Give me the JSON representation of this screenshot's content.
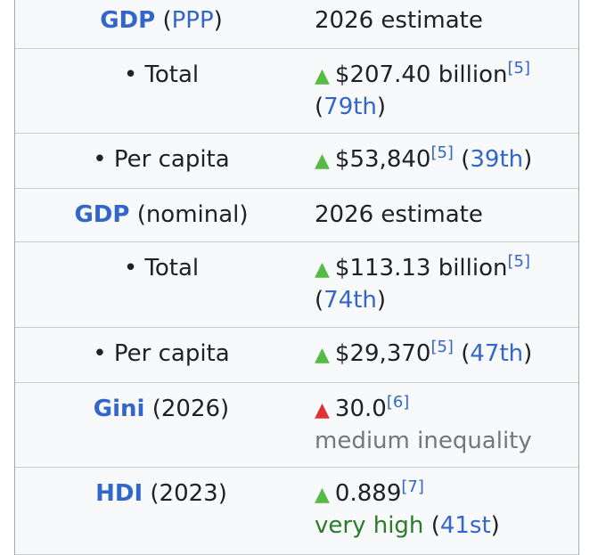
{
  "rows": [
    {
      "label_link": "GDP",
      "label_paren": "(PPP)",
      "value": "2026 estimate"
    },
    {
      "label": "• Total",
      "value": "$207.40 billion",
      "ref": "[5]",
      "rank": "79th",
      "trend": "up"
    },
    {
      "label": "• Per capita",
      "value": "$53,840",
      "ref": "[5]",
      "rank": "39th",
      "trend": "up"
    },
    {
      "label_link": "GDP",
      "label_rest": "(nominal)",
      "value": "2026 estimate"
    },
    {
      "label": "• Total",
      "value": "$113.13 billion",
      "ref": "[5]",
      "rank": "74th",
      "trend": "up"
    },
    {
      "label": "• Per capita",
      "value": "$29,370",
      "ref": "[5]",
      "rank": "47th",
      "trend": "up"
    },
    {
      "label_link": "Gini",
      "label_rest": "(2026)",
      "value": "30.0",
      "ref": "[6]",
      "note": "medium inequality",
      "trend": "up-red"
    },
    {
      "label_link": "HDI",
      "label_rest": "(2023)",
      "value": "0.889",
      "ref": "[7]",
      "note": "very high",
      "rank": "41st",
      "trend": "up"
    }
  ],
  "icons": {
    "up": "triangle-up-icon"
  },
  "colors": {
    "link": "#3366cc",
    "up": "#55bb44",
    "red": "#dd3333",
    "green_text": "#2a7b2a"
  }
}
